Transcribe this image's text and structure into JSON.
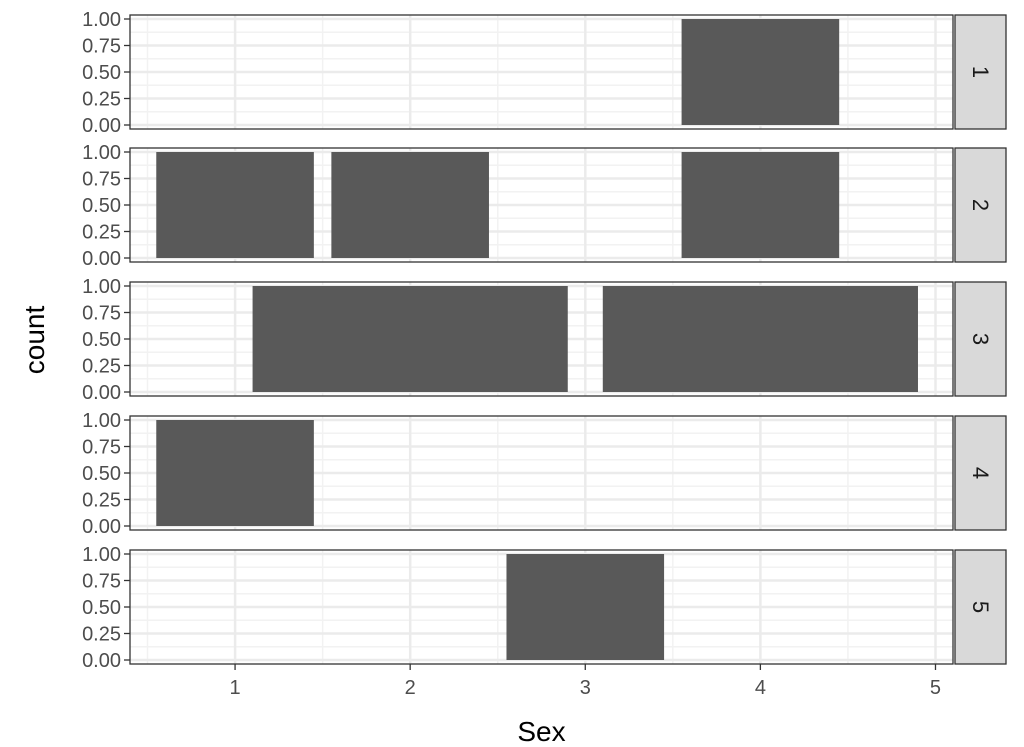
{
  "chart_data": {
    "type": "bar",
    "layout": "faceted, stacked vertically, facet strips on right",
    "xlabel": "Sex",
    "ylabel": "count",
    "x_ticks": [
      "1",
      "2",
      "3",
      "4",
      "5"
    ],
    "xlim": [
      0.4,
      5.1
    ],
    "y_ticks": [
      "0.00",
      "0.25",
      "0.50",
      "0.75",
      "1.00"
    ],
    "ylim": [
      0,
      1
    ],
    "grid": true,
    "bar_color": "#595959",
    "facets": [
      {
        "label": "1",
        "bars": [
          {
            "x": 4,
            "width": 0.9,
            "value": 1
          }
        ]
      },
      {
        "label": "2",
        "bars": [
          {
            "x": 1,
            "width": 0.9,
            "value": 1
          },
          {
            "x": 2,
            "width": 0.9,
            "value": 1
          },
          {
            "x": 4,
            "width": 0.9,
            "value": 1
          }
        ]
      },
      {
        "label": "3",
        "bars": [
          {
            "x": 2,
            "width": 1.8,
            "value": 1
          },
          {
            "x": 4,
            "width": 1.8,
            "value": 1
          }
        ]
      },
      {
        "label": "4",
        "bars": [
          {
            "x": 1,
            "width": 0.9,
            "value": 1
          }
        ]
      },
      {
        "label": "5",
        "bars": [
          {
            "x": 3,
            "width": 0.9,
            "value": 1
          }
        ]
      }
    ]
  }
}
